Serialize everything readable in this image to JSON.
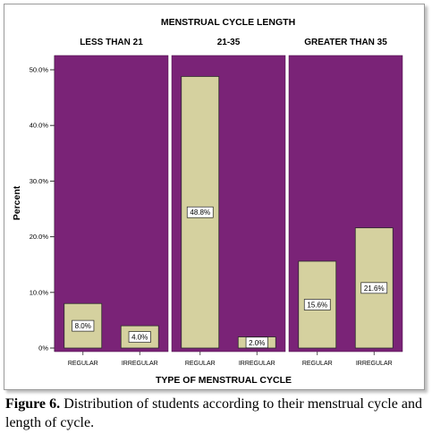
{
  "caption": {
    "label": "Figure 6.",
    "text": "Distribution of students according to their menstrual cycle and length of cycle."
  },
  "colors": {
    "panel_bg": "#7a2377",
    "bar_fill": "#d5d19f",
    "bar_stroke": "#2b2b2b",
    "label_box": "#ffffff"
  },
  "chart_data": {
    "type": "bar",
    "title": "MENSTRUAL CYCLE LENGTH",
    "xlabel": "TYPE OF MENSTRUAL CYCLE",
    "ylabel": "Percent",
    "ylim": [
      0,
      52
    ],
    "yticks": [
      0,
      10,
      20,
      30,
      40,
      50
    ],
    "ytick_labels": [
      "0%",
      "10.0%",
      "20.0%",
      "30.0%",
      "40.0%",
      "50.0%"
    ],
    "grid": false,
    "categories": [
      "REGULAR",
      "IRREGULAR"
    ],
    "panels": [
      {
        "name": "LESS THAN 21",
        "values": [
          8.0,
          4.0
        ],
        "labels": [
          "8.0%",
          "4.0%"
        ]
      },
      {
        "name": "21-35",
        "values": [
          48.8,
          2.0
        ],
        "labels": [
          "48.8%",
          "2.0%"
        ]
      },
      {
        "name": "GREATER THAN 35",
        "values": [
          15.6,
          21.6
        ],
        "labels": [
          "15.6%",
          "21.6%"
        ]
      }
    ]
  }
}
